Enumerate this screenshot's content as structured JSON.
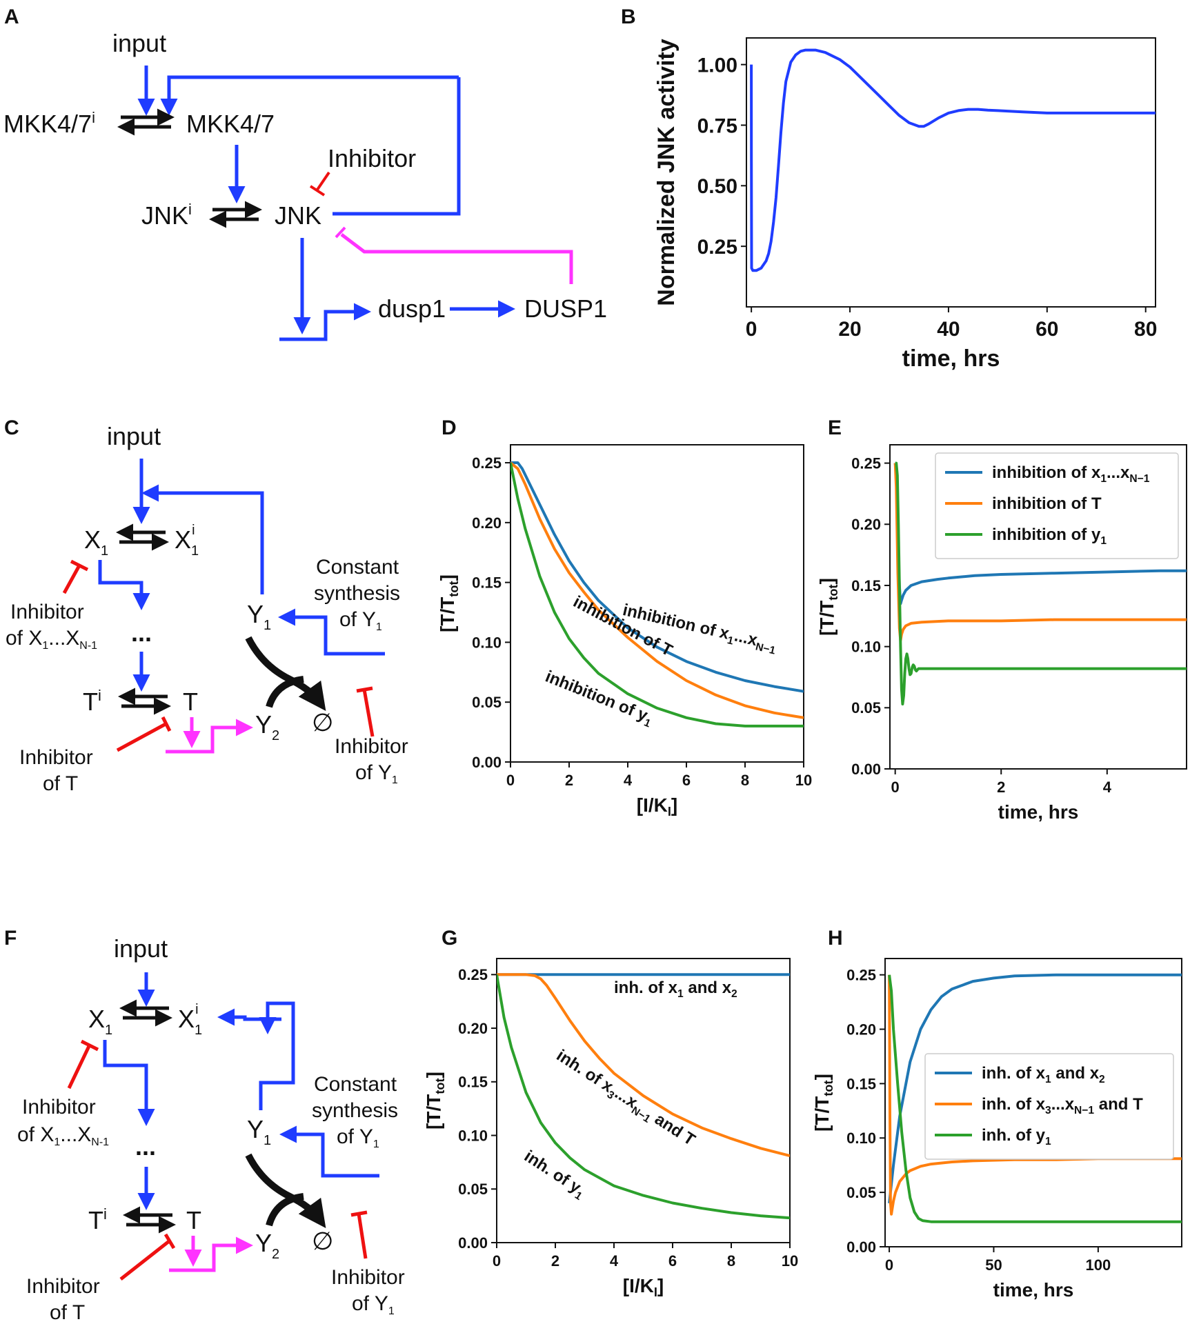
{
  "panels": {
    "A": {
      "letter": "A",
      "labels": {
        "input": "input",
        "mkk_i": "MKK4/7",
        "mkk_sup": "i",
        "mkk": "MKK4/7",
        "inhibitor": "Inhibitor",
        "jnk_i": "JNK",
        "jnk_sup": "i",
        "jnk": "JNK",
        "dusp1_gene": "dusp1",
        "dusp1_prot": "DUSP1"
      }
    },
    "C": {
      "letter": "C",
      "labels": {
        "input": "input",
        "x1": "X",
        "x1_sub": "1",
        "x1i": "X",
        "x1i_sub": "1",
        "x1i_sup": "i",
        "inhib_x_line1": "Inhibitor",
        "inhib_x_line2": "of X",
        "inhib_x_sub1": "1",
        "inhib_x_dots": "...X",
        "inhib_x_sub2": "N-1",
        "dots": "...",
        "ti": "T",
        "ti_sup": "i",
        "t": "T",
        "inhib_t_line1": "Inhibitor",
        "inhib_t_line2": "of T",
        "y1": "Y",
        "y1_sub": "1",
        "y2": "Y",
        "y2_sub": "2",
        "empty": "∅",
        "const_line1": "Constant",
        "const_line2": "synthesis",
        "const_line3": "of Y",
        "const_sub": "1",
        "inhib_y_line1": "Inhibitor",
        "inhib_y_line2": "of Y",
        "inhib_y_sub": "1"
      }
    },
    "F": {
      "letter": "F",
      "labels": {
        "input": "input",
        "x1": "X",
        "x1_sub": "1",
        "x1i": "X",
        "x1i_sub": "1",
        "x1i_sup": "i",
        "inhib_x_line1": "Inhibitor",
        "inhib_x_line2": "of X",
        "inhib_x_sub1": "1",
        "inhib_x_dots": "...X",
        "inhib_x_sub2": "N-1",
        "dots": "...",
        "ti": "T",
        "ti_sup": "i",
        "t": "T",
        "inhib_t_line1": "Inhibitor",
        "inhib_t_line2": "of T",
        "y1": "Y",
        "y1_sub": "1",
        "y2": "Y",
        "y2_sub": "2",
        "empty": "∅",
        "const_line1": "Constant",
        "const_line2": "synthesis",
        "const_line3": "of Y",
        "const_sub": "1",
        "inhib_y_line1": "Inhibitor",
        "inhib_y_line2": "of Y",
        "inhib_y_sub": "1"
      }
    }
  },
  "colors": {
    "blue": "#1f3cff",
    "black": "#111111",
    "magenta": "#ff33ff",
    "red": "#ee1111",
    "tab_blue": "#1f77b4",
    "tab_orange": "#ff7f0e",
    "tab_green": "#2ca02c"
  },
  "chart_data": [
    {
      "id": "B",
      "letter": "B",
      "type": "line",
      "xlabel": "time, hrs",
      "ylabel": "Normalized JNK activity",
      "xlim": [
        -1,
        82
      ],
      "ylim": [
        0.0,
        1.11
      ],
      "xticks": [
        0,
        20,
        40,
        60,
        80
      ],
      "xtick_labels": [
        "0",
        "20",
        "40",
        "60",
        "80"
      ],
      "yticks": [
        0.25,
        0.5,
        0.75,
        1.0
      ],
      "ytick_labels": [
        "0.25",
        "0.50",
        "0.75",
        "1.00"
      ],
      "legend": null,
      "series": [
        {
          "color": "#1f3cff",
          "x": [
            0,
            0.01,
            0.05,
            0.3,
            1,
            2,
            3,
            3.5,
            4,
            4.5,
            5,
            5.5,
            6,
            6.5,
            7,
            8,
            9,
            10,
            11,
            12,
            13,
            15,
            18,
            20,
            22,
            25,
            28,
            30,
            32,
            34,
            35,
            36,
            38,
            40,
            42,
            44,
            46,
            48,
            50,
            55,
            60,
            65,
            70,
            75,
            80,
            82
          ],
          "y": [
            1.0,
            0.6,
            0.16,
            0.15,
            0.15,
            0.16,
            0.19,
            0.22,
            0.27,
            0.35,
            0.45,
            0.58,
            0.72,
            0.84,
            0.93,
            1.01,
            1.04,
            1.055,
            1.06,
            1.06,
            1.06,
            1.05,
            1.02,
            0.99,
            0.95,
            0.89,
            0.83,
            0.79,
            0.76,
            0.745,
            0.745,
            0.755,
            0.78,
            0.8,
            0.81,
            0.815,
            0.815,
            0.812,
            0.81,
            0.805,
            0.8,
            0.8,
            0.8,
            0.8,
            0.8,
            0.8
          ]
        }
      ],
      "annotations": []
    },
    {
      "id": "D",
      "letter": "D",
      "type": "line",
      "xlabel": "[I/K",
      "xlabel_sub": "I",
      "xlabel_end": "]",
      "ylabel": "[T/T",
      "ylabel_sub": "tot",
      "ylabel_end": "]",
      "xlim": [
        0,
        10
      ],
      "ylim": [
        0,
        0.265
      ],
      "xticks": [
        0,
        2,
        4,
        6,
        8,
        10
      ],
      "xtick_labels": [
        "0",
        "2",
        "4",
        "6",
        "8",
        "10"
      ],
      "yticks": [
        0,
        0.05,
        0.1,
        0.15,
        0.2,
        0.25
      ],
      "ytick_labels": [
        "0.00",
        "0.05",
        "0.10",
        "0.15",
        "0.20",
        "0.25"
      ],
      "legend": null,
      "series": [
        {
          "color": "#1f77b4",
          "x": [
            0,
            0.25,
            0.4,
            0.6,
            1,
            1.5,
            2,
            2.5,
            3,
            4,
            5,
            6,
            7,
            8,
            9,
            10
          ],
          "y": [
            0.25,
            0.25,
            0.245,
            0.235,
            0.215,
            0.19,
            0.168,
            0.15,
            0.135,
            0.112,
            0.096,
            0.084,
            0.075,
            0.068,
            0.063,
            0.059
          ]
        },
        {
          "color": "#ff7f0e",
          "x": [
            0,
            0.25,
            0.5,
            1,
            1.5,
            2,
            2.5,
            3,
            4,
            5,
            6,
            7,
            8,
            9,
            10
          ],
          "y": [
            0.25,
            0.245,
            0.232,
            0.203,
            0.178,
            0.158,
            0.142,
            0.127,
            0.104,
            0.084,
            0.068,
            0.056,
            0.047,
            0.041,
            0.037
          ]
        },
        {
          "color": "#2ca02c",
          "x": [
            0,
            0.25,
            0.5,
            1,
            1.5,
            2,
            2.5,
            3,
            4,
            5,
            6,
            7,
            8,
            9,
            10
          ],
          "y": [
            0.25,
            0.22,
            0.195,
            0.155,
            0.125,
            0.103,
            0.087,
            0.074,
            0.057,
            0.045,
            0.037,
            0.032,
            0.03,
            0.03,
            0.03
          ]
        }
      ],
      "annotations": [
        {
          "text": "inhibition of x",
          "sub1": "1",
          "mid": "...x",
          "sub2": "N−1",
          "x": 3.8,
          "y": 0.123,
          "angle": 13
        },
        {
          "text": "inhibition of T",
          "x": 2.1,
          "y": 0.131,
          "angle": 28
        },
        {
          "text": "inhibition of y",
          "sub1": "1",
          "x": 1.15,
          "y": 0.068,
          "angle": 22
        }
      ]
    },
    {
      "id": "E",
      "letter": "E",
      "type": "line",
      "xlabel": "time, hrs",
      "ylabel": "[T/T",
      "ylabel_sub": "tot",
      "ylabel_end": "]",
      "xlim": [
        -0.1,
        5.5
      ],
      "ylim": [
        0,
        0.265
      ],
      "xticks": [
        0,
        2,
        4
      ],
      "xtick_labels": [
        "0",
        "2",
        "4"
      ],
      "yticks": [
        0,
        0.05,
        0.1,
        0.15,
        0.2,
        0.25
      ],
      "ytick_labels": [
        "0.00",
        "0.05",
        "0.10",
        "0.15",
        "0.20",
        "0.25"
      ],
      "legend": {
        "placement": "top-right",
        "entries": [
          {
            "label": "inhibition of x",
            "sub1": "1",
            "mid": "...x",
            "sub2": "N−1",
            "color": "#1f77b4"
          },
          {
            "label": "inhibition of T",
            "color": "#ff7f0e"
          },
          {
            "label": "inhibition of y",
            "sub1": "1",
            "color": "#2ca02c"
          }
        ]
      },
      "series": [
        {
          "color": "#1f77b4",
          "x": [
            0,
            0.02,
            0.05,
            0.08,
            0.1,
            0.12,
            0.15,
            0.2,
            0.3,
            0.5,
            0.8,
            1,
            1.5,
            2,
            3,
            4,
            5,
            5.5
          ],
          "y": [
            0.25,
            0.24,
            0.19,
            0.15,
            0.135,
            0.138,
            0.142,
            0.146,
            0.15,
            0.153,
            0.155,
            0.156,
            0.158,
            0.159,
            0.16,
            0.161,
            0.162,
            0.162
          ]
        },
        {
          "color": "#ff7f0e",
          "x": [
            0,
            0.02,
            0.05,
            0.08,
            0.1,
            0.12,
            0.15,
            0.2,
            0.3,
            0.5,
            1,
            2,
            3,
            4,
            5,
            5.5
          ],
          "y": [
            0.25,
            0.23,
            0.16,
            0.115,
            0.105,
            0.11,
            0.114,
            0.117,
            0.119,
            0.12,
            0.121,
            0.121,
            0.122,
            0.122,
            0.122,
            0.122
          ]
        },
        {
          "color": "#2ca02c",
          "x": [
            0,
            0.02,
            0.04,
            0.06,
            0.08,
            0.1,
            0.12,
            0.14,
            0.16,
            0.18,
            0.2,
            0.22,
            0.24,
            0.26,
            0.28,
            0.3,
            0.32,
            0.34,
            0.36,
            0.38,
            0.4,
            0.42,
            0.44,
            0.46,
            0.5,
            0.6,
            0.8,
            1,
            2,
            3,
            4,
            5,
            5.5
          ],
          "y": [
            0.25,
            0.25,
            0.24,
            0.2,
            0.15,
            0.1,
            0.065,
            0.053,
            0.06,
            0.078,
            0.09,
            0.094,
            0.09,
            0.082,
            0.077,
            0.078,
            0.083,
            0.085,
            0.084,
            0.081,
            0.08,
            0.081,
            0.082,
            0.082,
            0.082,
            0.082,
            0.082,
            0.082,
            0.082,
            0.082,
            0.082,
            0.082,
            0.082
          ]
        }
      ],
      "annotations": []
    },
    {
      "id": "G",
      "letter": "G",
      "type": "line",
      "xlabel": "[I/K",
      "xlabel_sub": "I",
      "xlabel_end": "]",
      "ylabel": "[T/T",
      "ylabel_sub": "tot",
      "ylabel_end": "]",
      "xlim": [
        0,
        10
      ],
      "ylim": [
        0,
        0.265
      ],
      "xticks": [
        0,
        2,
        4,
        6,
        8,
        10
      ],
      "xtick_labels": [
        "0",
        "2",
        "4",
        "6",
        "8",
        "10"
      ],
      "yticks": [
        0,
        0.05,
        0.1,
        0.15,
        0.2,
        0.25
      ],
      "ytick_labels": [
        "0.00",
        "0.05",
        "0.10",
        "0.15",
        "0.20",
        "0.25"
      ],
      "legend": null,
      "series": [
        {
          "color": "#1f77b4",
          "x": [
            0,
            10
          ],
          "y": [
            0.25,
            0.25
          ]
        },
        {
          "color": "#ff7f0e",
          "x": [
            0,
            0.5,
            1,
            1.3,
            1.5,
            1.7,
            2,
            2.5,
            3,
            3.5,
            4,
            5,
            6,
            7,
            8,
            9,
            10
          ],
          "y": [
            0.25,
            0.25,
            0.25,
            0.249,
            0.246,
            0.24,
            0.228,
            0.207,
            0.188,
            0.172,
            0.158,
            0.137,
            0.12,
            0.107,
            0.097,
            0.088,
            0.081
          ]
        },
        {
          "color": "#2ca02c",
          "x": [
            0,
            0.25,
            0.5,
            1,
            1.5,
            2,
            2.5,
            3,
            4,
            5,
            6,
            7,
            8,
            9,
            10
          ],
          "y": [
            0.25,
            0.21,
            0.182,
            0.14,
            0.112,
            0.093,
            0.079,
            0.068,
            0.053,
            0.044,
            0.037,
            0.032,
            0.028,
            0.025,
            0.023
          ]
        }
      ],
      "annotations": [
        {
          "text": "inh. of x",
          "sub1": "1",
          "mid": " and x",
          "sub2": "2",
          "x": 4.0,
          "y": 0.233,
          "angle": 0
        },
        {
          "text": "inh. of x",
          "sub1": "3",
          "mid": "...x",
          "sub2": "N−1",
          "end": " and T",
          "x": 2.0,
          "y": 0.172,
          "angle": 33
        },
        {
          "text": "inh. of y",
          "sub1": "1",
          "x": 0.9,
          "y": 0.078,
          "angle": 33
        }
      ]
    },
    {
      "id": "H",
      "letter": "H",
      "type": "line",
      "xlabel": "time, hrs",
      "ylabel": "[T/T",
      "ylabel_sub": "tot",
      "ylabel_end": "]",
      "xlim": [
        -2,
        140
      ],
      "ylim": [
        0,
        0.265
      ],
      "xticks": [
        0,
        50,
        100
      ],
      "xtick_labels": [
        "0",
        "50",
        "100"
      ],
      "yticks": [
        0,
        0.05,
        0.1,
        0.15,
        0.2,
        0.25
      ],
      "ytick_labels": [
        "0.00",
        "0.05",
        "0.10",
        "0.15",
        "0.20",
        "0.25"
      ],
      "legend": {
        "placement": "center-right",
        "entries": [
          {
            "label": "inh. of x",
            "sub1": "1",
            "mid": " and x",
            "sub2": "2",
            "color": "#1f77b4"
          },
          {
            "label": "inh. of x",
            "sub1": "3",
            "mid": "...x",
            "sub2": "N−1",
            "end": " and T",
            "color": "#ff7f0e"
          },
          {
            "label": "inh. of y",
            "sub1": "1",
            "color": "#2ca02c"
          }
        ]
      },
      "series": [
        {
          "color": "#1f77b4",
          "x": [
            0,
            2,
            5,
            10,
            15,
            20,
            25,
            30,
            40,
            50,
            60,
            80,
            100,
            120,
            140
          ],
          "y": [
            0.04,
            0.075,
            0.12,
            0.17,
            0.2,
            0.218,
            0.23,
            0.237,
            0.244,
            0.247,
            0.249,
            0.25,
            0.25,
            0.25,
            0.25
          ]
        },
        {
          "color": "#ff7f0e",
          "x": [
            0,
            0.3,
            0.6,
            1,
            2,
            3,
            5,
            8,
            10,
            15,
            20,
            30,
            40,
            60,
            80,
            100,
            120,
            140
          ],
          "y": [
            0.25,
            0.12,
            0.04,
            0.03,
            0.042,
            0.05,
            0.06,
            0.067,
            0.07,
            0.074,
            0.076,
            0.078,
            0.079,
            0.08,
            0.08,
            0.081,
            0.081,
            0.081
          ]
        },
        {
          "color": "#2ca02c",
          "x": [
            0,
            1,
            2,
            4,
            6,
            8,
            10,
            12,
            14,
            16,
            20,
            30,
            50,
            80,
            110,
            140
          ],
          "y": [
            0.25,
            0.235,
            0.2,
            0.15,
            0.105,
            0.07,
            0.045,
            0.032,
            0.026,
            0.024,
            0.023,
            0.023,
            0.023,
            0.023,
            0.023,
            0.023
          ]
        }
      ],
      "annotations": []
    }
  ]
}
